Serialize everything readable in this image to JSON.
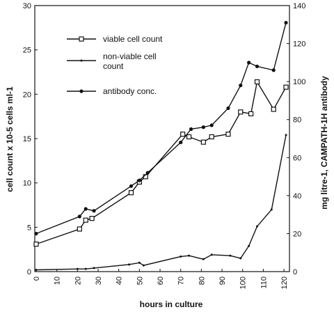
{
  "chart_data": {
    "type": "line",
    "title": "",
    "xlabel": "hours in culture",
    "ylabel_left": "cell count x 10-5 cells ml-1",
    "ylabel_right": "mg litre-1, CAMPATH-1H antibody",
    "xlim": [
      0,
      122
    ],
    "xticks": [
      0,
      10,
      20,
      30,
      40,
      50,
      60,
      70,
      80,
      90,
      100,
      110,
      120
    ],
    "ylim_left": [
      0,
      30
    ],
    "yticks_left": [
      0,
      5,
      10,
      15,
      20,
      25,
      30
    ],
    "ylim_right": [
      0,
      140
    ],
    "yticks_right": [
      0,
      20,
      40,
      60,
      80,
      100,
      120,
      140
    ],
    "grid": false,
    "legend_position": "top-left",
    "series": [
      {
        "name": "viable cell count",
        "axis": "left",
        "marker": "open-square",
        "x": [
          0,
          21,
          24,
          27,
          46,
          50,
          53,
          71,
          74,
          81,
          85,
          93,
          99,
          104,
          107,
          115,
          121
        ],
        "y": [
          3.1,
          4.8,
          5.8,
          6.0,
          8.9,
          10.1,
          10.7,
          15.5,
          15.2,
          14.6,
          15.2,
          15.5,
          18.0,
          17.8,
          21.4,
          18.3,
          20.8
        ]
      },
      {
        "name": "non-viable cell count",
        "axis": "left",
        "marker": "small-dot",
        "x": [
          0,
          20,
          24,
          28,
          45,
          50,
          52,
          70,
          74,
          81,
          85,
          94,
          99,
          103,
          107,
          114,
          121
        ],
        "y": [
          0.2,
          0.3,
          0.3,
          0.4,
          0.8,
          1.0,
          0.7,
          1.7,
          1.8,
          1.4,
          1.9,
          1.8,
          1.5,
          2.9,
          5.1,
          7.0,
          15.4
        ]
      },
      {
        "name": "antibody conc.",
        "axis": "right",
        "marker": "filled-dot",
        "x": [
          0,
          21,
          24,
          28,
          46,
          50,
          54,
          70,
          75,
          81,
          85,
          93,
          99,
          103,
          107,
          115,
          121
        ],
        "y": [
          20,
          29,
          33,
          32,
          45,
          48,
          52,
          68,
          75,
          76,
          77,
          86,
          98,
          110,
          108,
          106,
          131
        ]
      }
    ]
  }
}
